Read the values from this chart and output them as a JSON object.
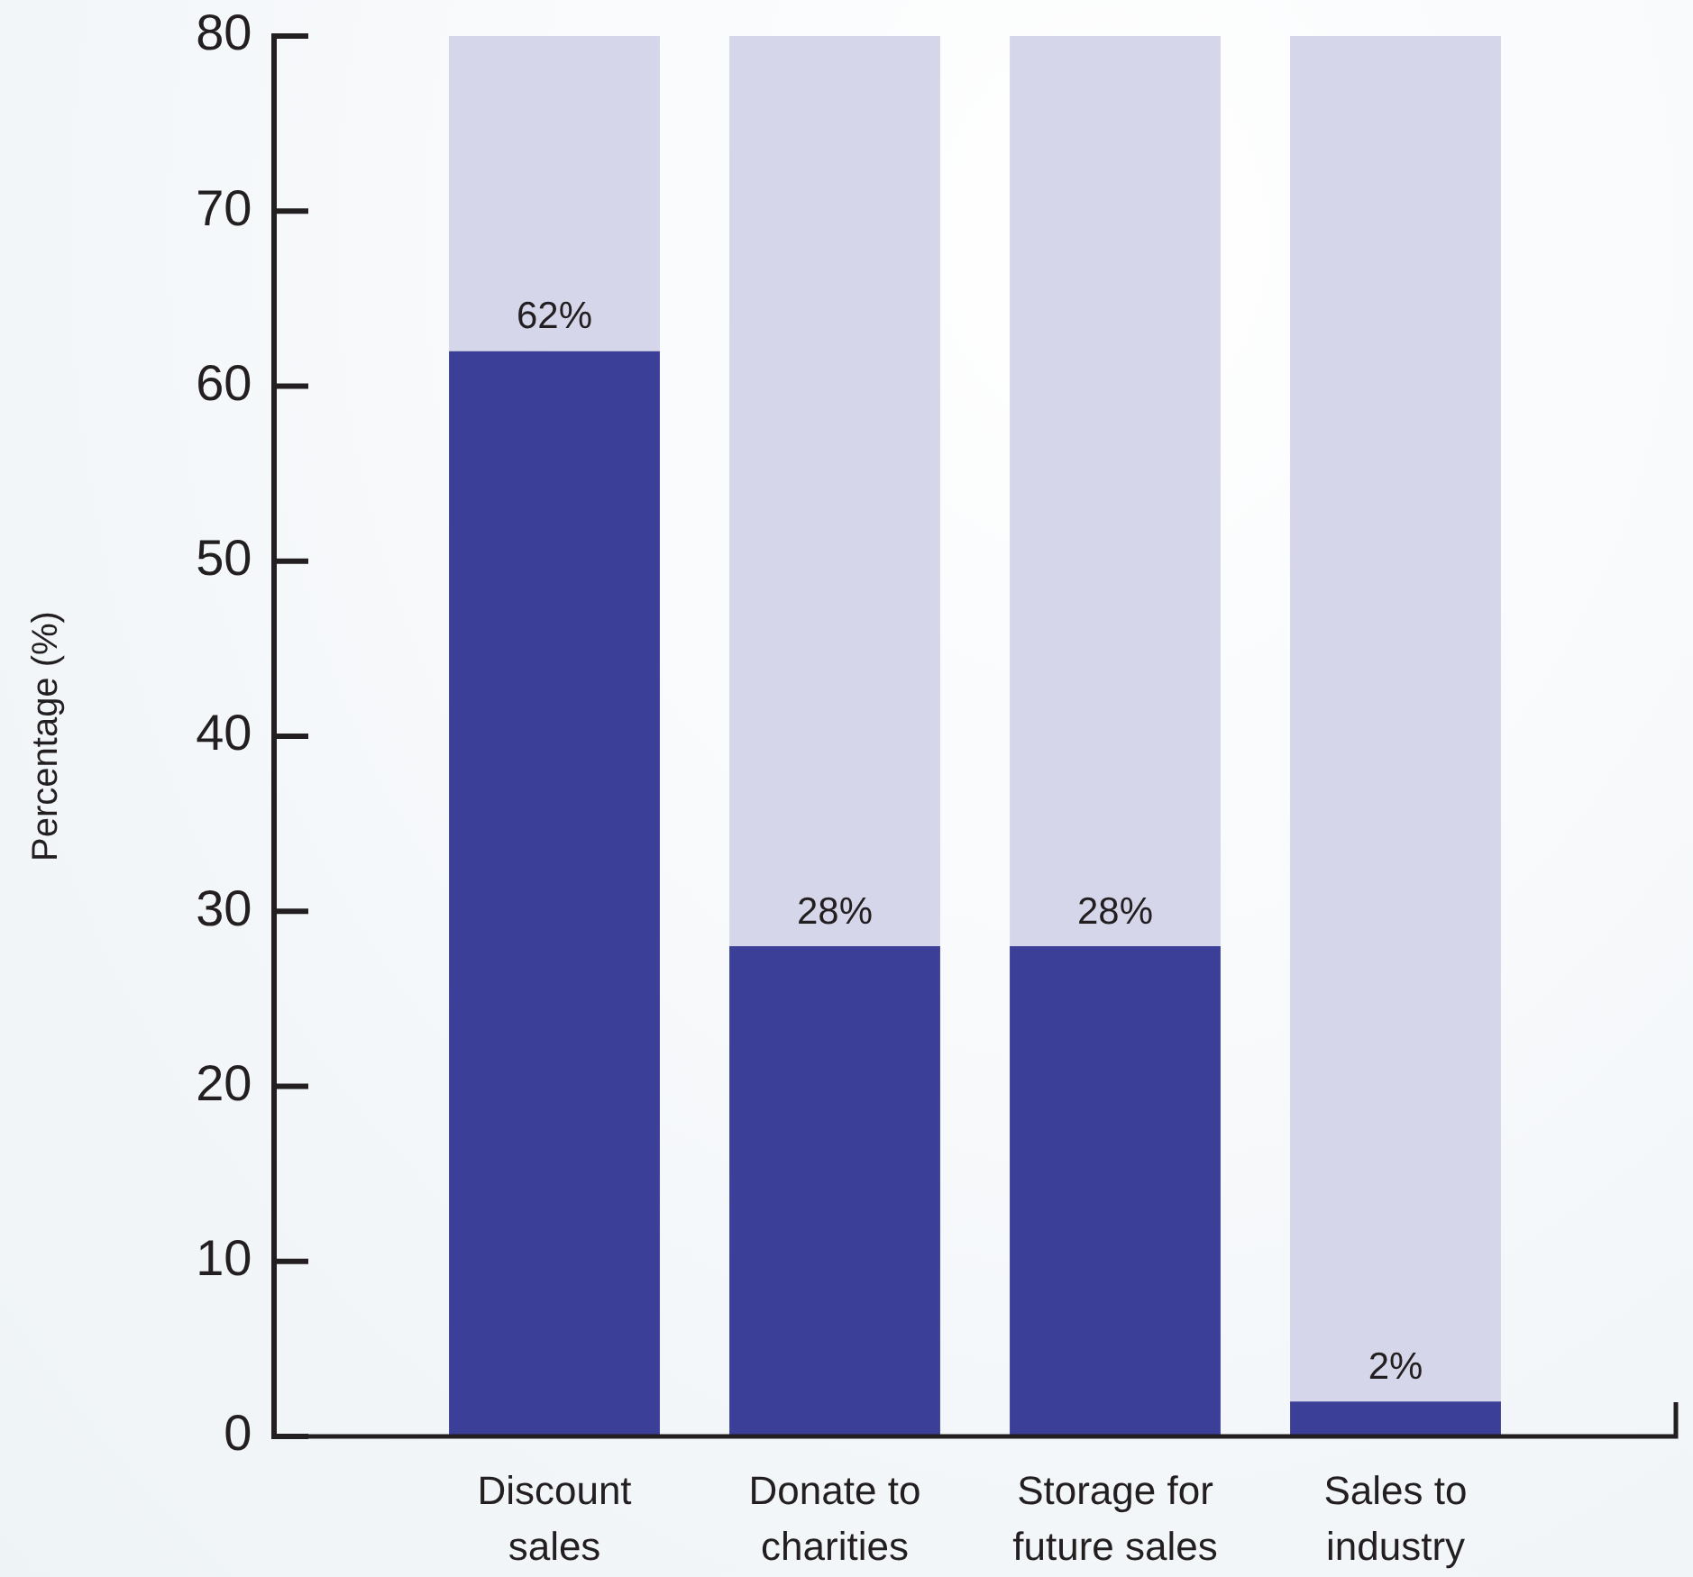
{
  "chart_data": {
    "type": "bar",
    "ylabel": "Percentage (%)",
    "categories": [
      "Discount sales",
      "Donate to charities",
      "Storage for future sales",
      "Sales to industry"
    ],
    "stacked": true,
    "series": [
      {
        "color": "#3b3f98",
        "values": [
          62,
          28,
          28,
          2
        ],
        "value_labels": [
          "62%",
          "28%",
          "28%",
          "2%"
        ]
      },
      {
        "color": "#d6d6ea",
        "values": [
          18,
          52,
          52,
          78
        ]
      }
    ],
    "ylim": [
      0,
      80
    ],
    "yticks": [
      0,
      10,
      20,
      30,
      40,
      50,
      60,
      70,
      80
    ],
    "grid": false,
    "legend": false
  }
}
